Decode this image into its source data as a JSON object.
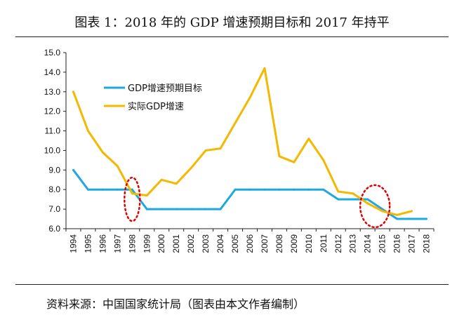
{
  "page": {
    "title": "图表 1：2018 年的 GDP 增速预期目标和 2017 年持平",
    "source": "资料来源：中国国家统计局（图表由本文作者编制）"
  },
  "chart_data": {
    "type": "line",
    "title": "图表 1：2018 年的 GDP 增速预期目标和 2017 年持平",
    "xlabel": "",
    "ylabel": "",
    "x": [
      "1994",
      "1995",
      "1996",
      "1997",
      "1998",
      "1999",
      "2000",
      "2001",
      "2002",
      "2003",
      "2004",
      "2005",
      "2006",
      "2007",
      "2008",
      "2009",
      "2010",
      "2011",
      "2012",
      "2013",
      "2014",
      "2015",
      "2016",
      "2017",
      "2018"
    ],
    "ylim": [
      6.0,
      15.0
    ],
    "yticks": [
      "6.0",
      "7.0",
      "8.0",
      "9.0",
      "10.0",
      "11.0",
      "12.0",
      "13.0",
      "14.0",
      "15.0"
    ],
    "grid": false,
    "legend_position": "upper-left",
    "series": [
      {
        "name": "GDP增速预期目标",
        "color": "#1ea8e0",
        "values": [
          9.0,
          8.0,
          8.0,
          8.0,
          8.0,
          7.0,
          7.0,
          7.0,
          7.0,
          7.0,
          7.0,
          8.0,
          8.0,
          8.0,
          8.0,
          8.0,
          8.0,
          8.0,
          7.5,
          7.5,
          7.5,
          7.0,
          6.5,
          6.5,
          6.5
        ]
      },
      {
        "name": "实际GDP增速",
        "color": "#f5b800",
        "values": [
          13.0,
          11.0,
          9.9,
          9.2,
          7.8,
          7.7,
          8.5,
          8.3,
          9.1,
          10.0,
          10.1,
          11.4,
          12.7,
          14.2,
          9.7,
          9.4,
          10.6,
          9.5,
          7.9,
          7.8,
          7.3,
          6.9,
          6.7,
          6.9,
          null
        ]
      }
    ],
    "annotations": [
      {
        "shape": "dotted-ellipse",
        "color": "#e00000",
        "x_year": "1998",
        "y_value": 7.5
      },
      {
        "shape": "dotted-ellipse",
        "color": "#e00000",
        "x_year": "2014.5",
        "y_value": 7.15
      }
    ]
  }
}
